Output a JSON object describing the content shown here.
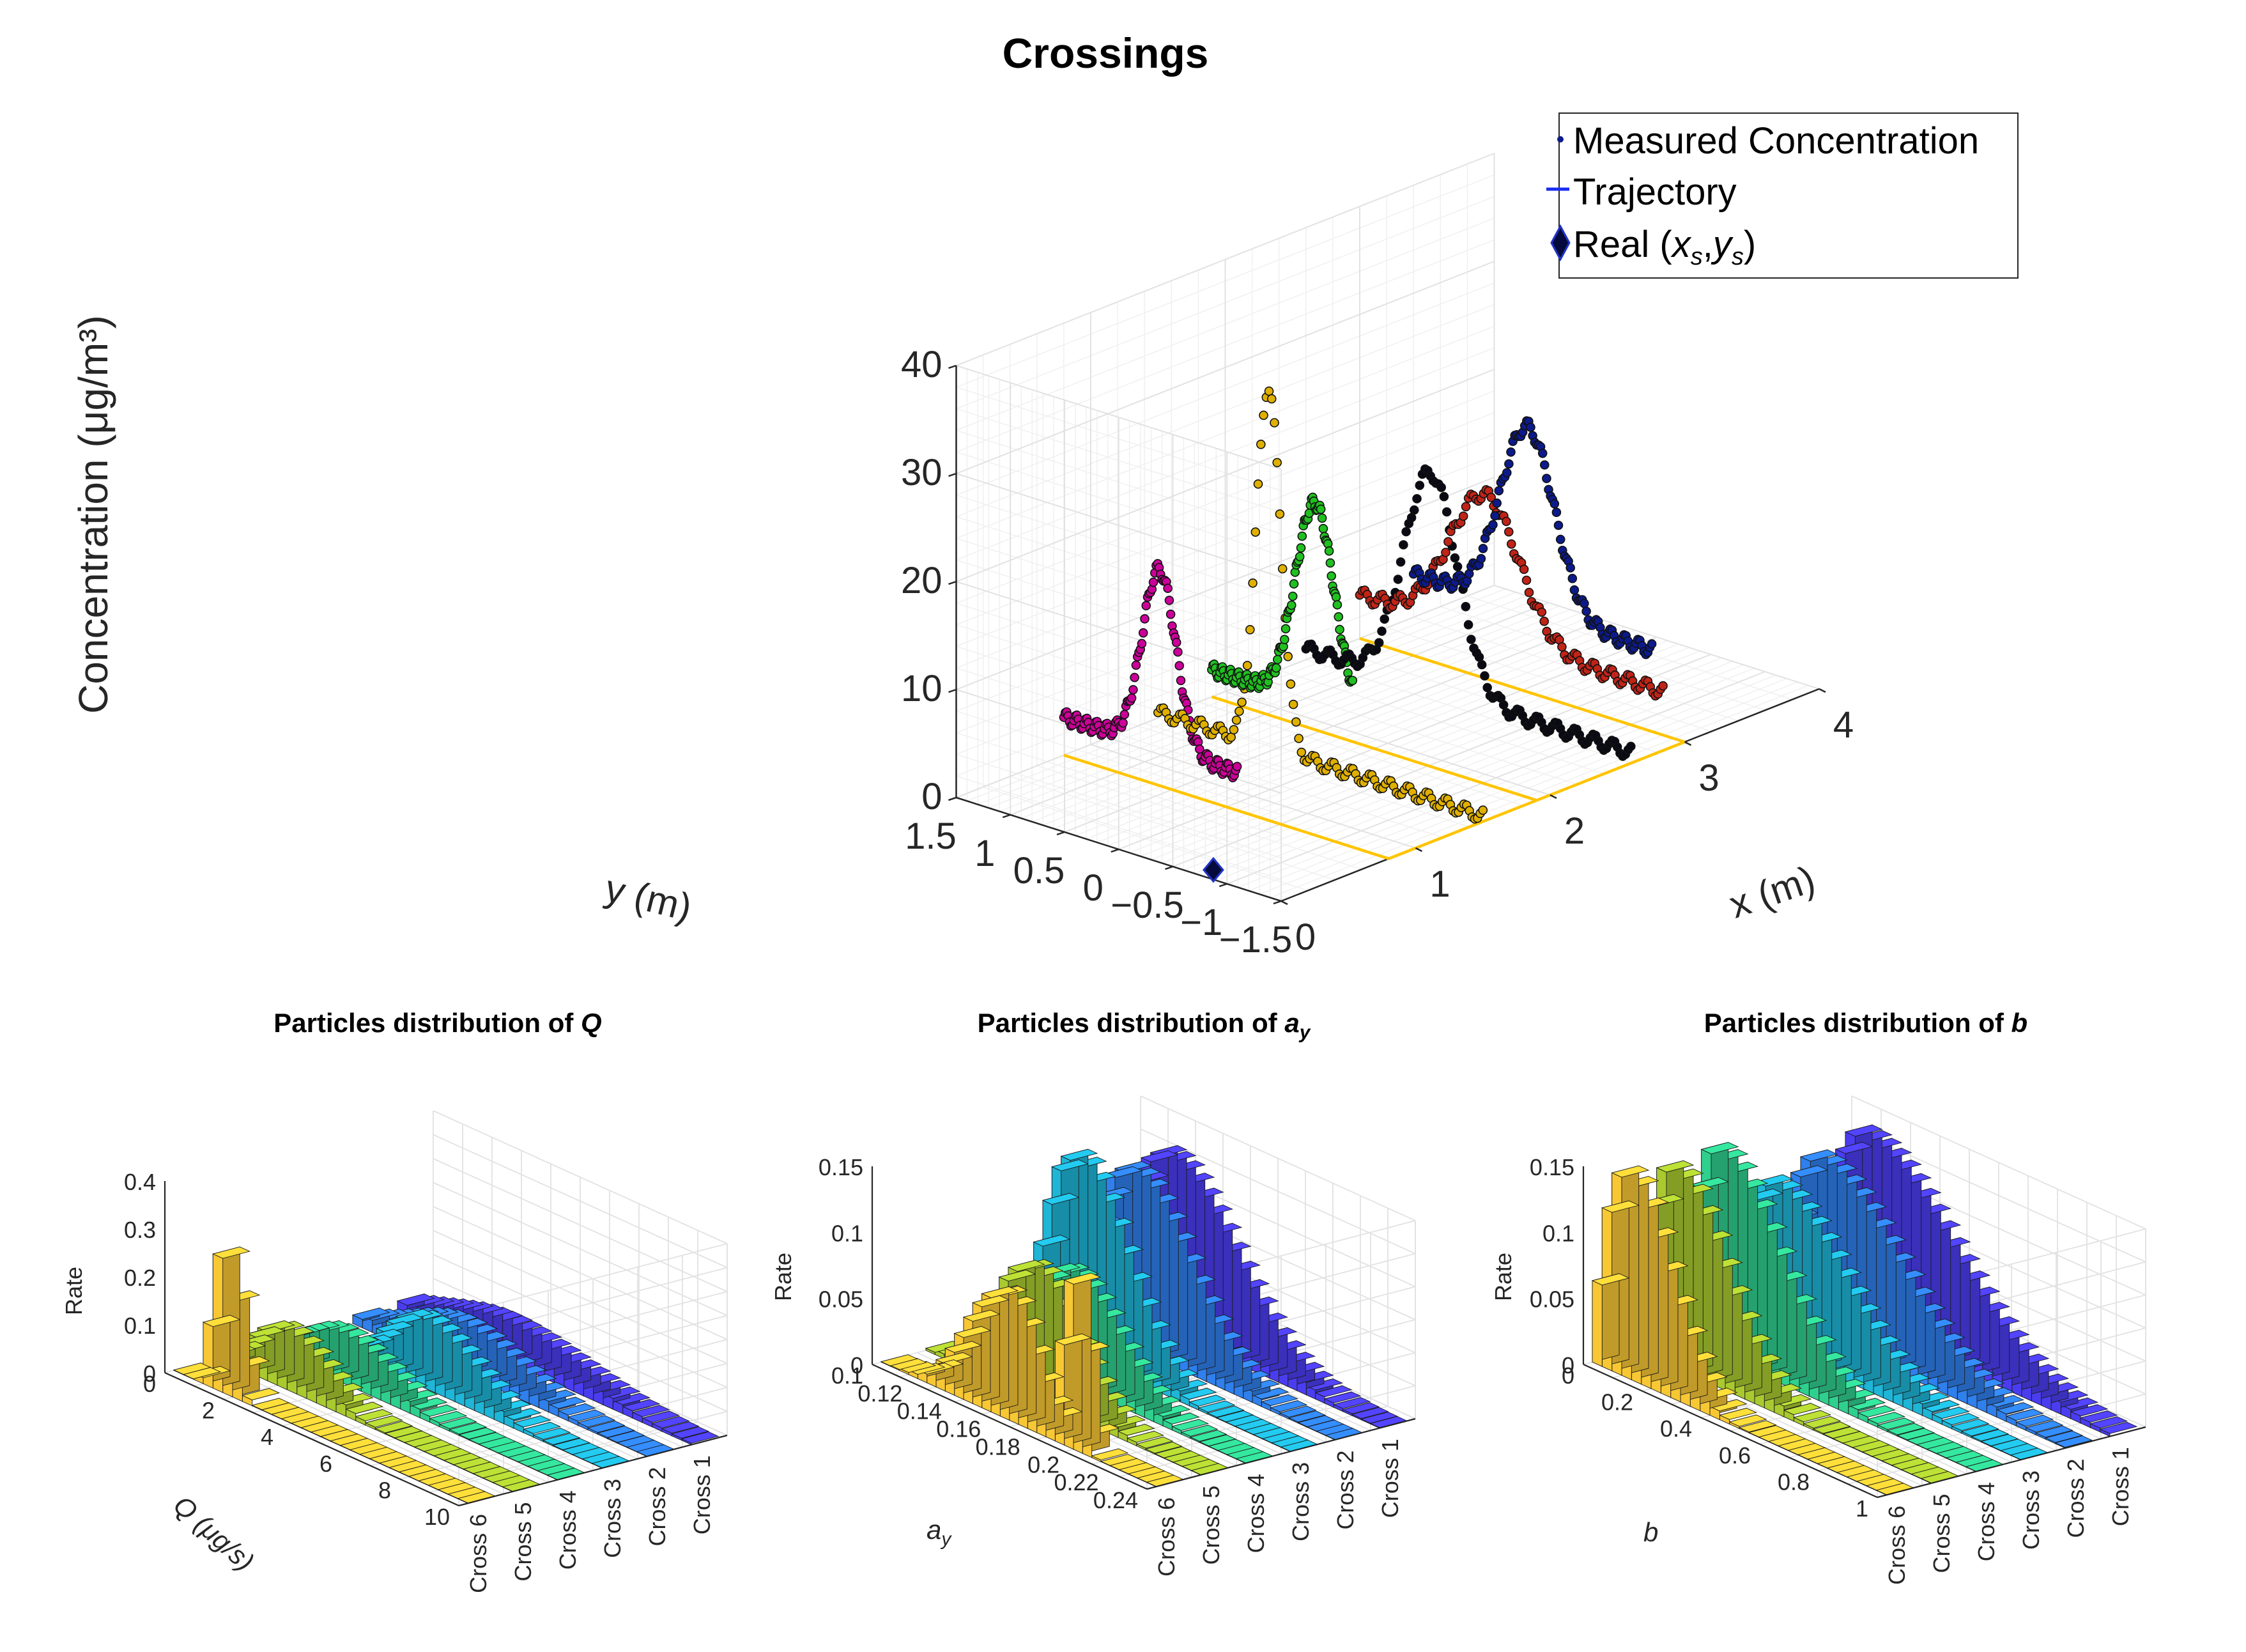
{
  "colors": {
    "cross1": "#4a3df0",
    "cross2": "#2f7fec",
    "cross3": "#1fb5d6",
    "cross4": "#2fcf8e",
    "cross5": "#a9c92f",
    "cross6": "#f7c734",
    "trajectory": "#ffc400",
    "grid": "#e2e2e2",
    "axis": "#262626",
    "traj_blue": "#0c1a8a",
    "traj_red": "#c02418",
    "traj_black": "#0a0a14",
    "traj_green": "#20c020",
    "traj_gold": "#e0b000",
    "traj_magenta": "#cc0099"
  },
  "chart_data": [
    {
      "id": "main",
      "type": "scatter",
      "title": "Crossings",
      "xlabel": "x (m)",
      "ylabel": "y (m)",
      "zlabel": "Concentration (μg/m³)",
      "xlim": [
        0,
        4
      ],
      "ylim": [
        -1.5,
        1.5
      ],
      "zlim": [
        0,
        40
      ],
      "xticks": [
        "0",
        "1",
        "2",
        "3",
        "4"
      ],
      "yticks": [
        "1.5",
        "1",
        "0.5",
        "0",
        "−0.5",
        "−1",
        "−1.5"
      ],
      "zticks": [
        "0",
        "10",
        "20",
        "30",
        "40"
      ],
      "legend": {
        "position": "top-right",
        "entries": [
          "Measured Concentration",
          "Trajectory",
          "Real (x_s,y_s)"
        ],
        "entry3_prefix": "Real (",
        "entry3_x": "x",
        "entry3_xsub": "s",
        "entry3_sep": ",",
        "entry3_y": "y",
        "entry3_ysub": "s",
        "entry3_suffix": ")"
      },
      "source": {
        "x": 0.1,
        "y": -0.75,
        "z": 0
      },
      "trajectory_lines": [
        {
          "y0": 1.5,
          "y1": -1.5,
          "x": 0.8
        },
        {
          "y0": 1.5,
          "y1": -1.5,
          "x": 1.9
        },
        {
          "y0": 1.5,
          "y1": -1.5,
          "x": 3.0
        }
      ],
      "series": [
        {
          "name": "Cross 6",
          "color": "traj_magenta",
          "x": 0.8,
          "y_start": 1.5,
          "y_end": -0.1,
          "peak_y": 0.62,
          "peak": 20,
          "width": 0.22,
          "base": 3.5
        },
        {
          "name": "Cross 5",
          "color": "traj_gold",
          "x": 1.5,
          "y_start": 1.5,
          "y_end": -1.5,
          "peak_y": 0.48,
          "peak": 34,
          "width": 0.16,
          "base": 0.5
        },
        {
          "name": "Cross 4",
          "color": "traj_green",
          "x": 1.9,
          "y_start": 1.5,
          "y_end": 0.2,
          "peak_y": 0.55,
          "peak": 21,
          "width": 0.25,
          "base": 2.5
        },
        {
          "name": "Cross 3",
          "color": "traj_black",
          "x": 2.6,
          "y_start": 1.5,
          "y_end": -1.5,
          "peak_y": 0.35,
          "peak": 21,
          "width": 0.35,
          "base": 1.0
        },
        {
          "name": "Cross 2",
          "color": "traj_red",
          "x": 3.0,
          "y_start": 1.5,
          "y_end": -1.3,
          "peak_y": 0.35,
          "peak": 17,
          "width": 0.45,
          "base": 4.0
        },
        {
          "name": "Cross 1",
          "color": "traj_blue",
          "x": 3.4,
          "y_start": 1.5,
          "y_end": -0.7,
          "peak_y": 0.45,
          "peak": 21,
          "width": 0.35,
          "base": 4.0
        }
      ]
    },
    {
      "id": "q",
      "type": "bar3",
      "title": "Particles distribution of Q",
      "title_prefix": "Particles distribution of ",
      "title_var": "Q",
      "xlabel": "Q (μg/s)",
      "zlabel": "Rate",
      "xlim": [
        0,
        11
      ],
      "zlim": [
        0,
        0.4
      ],
      "xticks": [
        "0",
        "2",
        "4",
        "6",
        "8",
        "10"
      ],
      "zticks": [
        "0",
        "0.1",
        "0.2",
        "0.3",
        "0.4"
      ],
      "series_labels": [
        "Cross 6",
        "Cross 5",
        "Cross 4",
        "Cross 3",
        "Cross 2",
        "Cross 1"
      ],
      "bins": 30,
      "series": [
        {
          "name": "Cross 6",
          "color": "cross6",
          "peak_bin": 4,
          "peak": 0.28,
          "rise": 0.8,
          "fall": 1.2
        },
        {
          "name": "Cross 5",
          "color": "cross5",
          "peak_bin": 5,
          "peak": 0.11,
          "rise": 2.5,
          "fall": 4.0
        },
        {
          "name": "Cross 4",
          "color": "cross4",
          "peak_bin": 6,
          "peak": 0.09,
          "rise": 3.5,
          "fall": 5.0
        },
        {
          "name": "Cross 3",
          "color": "cross3",
          "peak_bin": 10,
          "peak": 0.13,
          "rise": 3.0,
          "fall": 5.0
        },
        {
          "name": "Cross 2",
          "color": "cross2",
          "peak_bin": 9,
          "peak": 0.09,
          "rise": 5.0,
          "fall": 6.0
        },
        {
          "name": "Cross 1",
          "color": "cross1",
          "peak_bin": 9,
          "peak": 0.07,
          "rise": 6.0,
          "fall": 8.0
        }
      ]
    },
    {
      "id": "ay",
      "type": "bar3",
      "title": "Particles distribution of a_y",
      "title_prefix": "Particles distribution of ",
      "title_var": "a",
      "title_sub": "y",
      "xlabel": "a_y",
      "xlabel_main": "a",
      "xlabel_sub": "y",
      "zlabel": "Rate",
      "xlim": [
        0.1,
        0.25
      ],
      "zlim": [
        0,
        0.15
      ],
      "xticks": [
        "0.1",
        "0.12",
        "0.14",
        "0.16",
        "0.18",
        "0.2",
        "0.22",
        "0.24"
      ],
      "zticks": [
        "0",
        "0.05",
        "0.1",
        "0.15"
      ],
      "series_labels": [
        "Cross 6",
        "Cross 5",
        "Cross 4",
        "Cross 3",
        "Cross 2",
        "Cross 1"
      ],
      "bins": 30,
      "series": [
        {
          "name": "Cross 6",
          "color": "cross6",
          "peak_bin": 12,
          "peak": 0.09,
          "rise": 3.5,
          "fall": 3.0,
          "peak2_bin": 20,
          "peak2": 0.125
        },
        {
          "name": "Cross 5",
          "color": "cross5",
          "peak_bin": 10,
          "peak": 0.095,
          "rise": 3.5,
          "fall": 4.5
        },
        {
          "name": "Cross 4",
          "color": "cross4",
          "peak_bin": 9,
          "peak": 0.08,
          "rise": 3.5,
          "fall": 5.0
        },
        {
          "name": "Cross 3",
          "color": "cross3",
          "peak_bin": 5,
          "peak": 0.145,
          "rise": 2.5,
          "fall": 5.0
        },
        {
          "name": "Cross 2",
          "color": "cross2",
          "peak_bin": 6,
          "peak": 0.13,
          "rise": 3.0,
          "fall": 6.0
        },
        {
          "name": "Cross 1",
          "color": "cross1",
          "peak_bin": 5,
          "peak": 0.13,
          "rise": 3.0,
          "fall": 7.0
        }
      ]
    },
    {
      "id": "b",
      "type": "bar3",
      "title": "Particles distribution of b",
      "title_prefix": "Particles distribution of ",
      "title_var": "b",
      "xlabel": "b",
      "zlabel": "Rate",
      "xlim": [
        0,
        1
      ],
      "zlim": [
        0,
        0.15
      ],
      "xticks": [
        "0",
        "0.2",
        "0.4",
        "0.6",
        "0.8",
        "1"
      ],
      "zticks": [
        "0",
        "0.05",
        "0.1",
        "0.15"
      ],
      "series_labels": [
        "Cross 6",
        "Cross 5",
        "Cross 4",
        "Cross 3",
        "Cross 2",
        "Cross 1"
      ],
      "bins": 30,
      "series": [
        {
          "name": "Cross 6",
          "color": "cross6",
          "peak_bin": 2,
          "peak": 0.15,
          "rise": 1.5,
          "fall": 4.0
        },
        {
          "name": "Cross 5",
          "color": "cross5",
          "peak_bin": 2,
          "peak": 0.145,
          "rise": 1.5,
          "fall": 5.0
        },
        {
          "name": "Cross 4",
          "color": "cross4",
          "peak_bin": 2,
          "peak": 0.15,
          "rise": 1.5,
          "fall": 6.0
        },
        {
          "name": "Cross 3",
          "color": "cross3",
          "peak_bin": 3,
          "peak": 0.12,
          "rise": 2.0,
          "fall": 7.0
        },
        {
          "name": "Cross 2",
          "color": "cross2",
          "peak_bin": 3,
          "peak": 0.13,
          "rise": 2.0,
          "fall": 8.0
        },
        {
          "name": "Cross 1",
          "color": "cross1",
          "peak_bin": 3,
          "peak": 0.14,
          "rise": 2.0,
          "fall": 9.0
        }
      ]
    }
  ]
}
